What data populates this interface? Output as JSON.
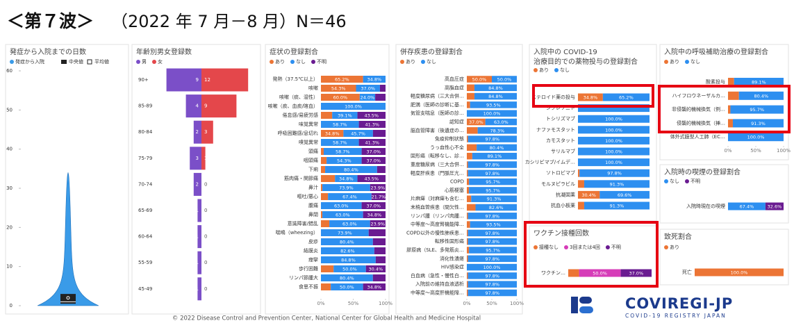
{
  "page_title_prefix": "＜第７波＞",
  "page_title": "（2022 年 7 月－8 月）N＝46",
  "footer": "© 2022 Disease Control and Prevention Center, National Center for Global Health and Medicine Hospital",
  "logo": {
    "name": "COVIREGI-JP",
    "tagline": "COVID-19 REGISTRY JAPAN"
  },
  "chart_data": [
    {
      "type": "violin",
      "title": "発症から入院までの日数",
      "series_name": "発症から入院",
      "median_label": "中央値",
      "mean_label": "平均値",
      "color": "#3a9be8",
      "min": 0,
      "q1": 0.5,
      "median": 1,
      "q3": 3,
      "max": 34,
      "mean": 2,
      "ylim": [
        0,
        60
      ],
      "yticks": [
        0,
        10,
        20,
        30,
        40,
        50,
        60
      ]
    },
    {
      "type": "pyramid",
      "title": "年齢別男女登録数",
      "categories": [
        "90+",
        "85-89",
        "80-84",
        "75-79",
        "70-74",
        "65-69",
        "60-64",
        "55-59",
        "45-49"
      ],
      "series": [
        {
          "name": "男",
          "color": "#7b4fc8",
          "values": [
            9,
            4,
            2,
            3,
            2,
            1,
            1,
            1,
            1
          ]
        },
        {
          "name": "女",
          "color": "#e4474b",
          "values": [
            12,
            9,
            3,
            1,
            0,
            0,
            0,
            0,
            0
          ]
        }
      ]
    },
    {
      "type": "stacked_bar_h",
      "title": "症状の登録割合",
      "categories": [
        "発熱（37.5℃以上）",
        "咳嗽",
        "咳嗽（痰、湿性）",
        "咳嗽（痰、血痰/喀血）",
        "倦怠感/易疲労感",
        "味覚異常",
        "呼吸困難感/息切れ",
        "嗅覚異常",
        "頭痛",
        "咽頭痛",
        "下痢",
        "筋肉痛・関節痛",
        "鼻汁",
        "嘔吐/悪心",
        "腹痛",
        "鼻閉",
        "意識障害/錯乱",
        "喘鳴（wheezing）",
        "皮疹",
        "結膜炎",
        "痙攣",
        "歩行困難",
        "リンパ節腫大",
        "食思不振"
      ],
      "series": [
        {
          "name": "あり",
          "color": "#ec7535",
          "values": [
            65.2,
            54.3,
            60.0,
            0,
            17.4,
            0,
            34.8,
            0,
            4.3,
            8.7,
            6.5,
            21.7,
            2.2,
            10.9,
            0,
            2.2,
            13.0,
            0,
            0,
            0,
            0,
            19.6,
            0,
            15.2
          ],
          "value_labels": [
            "65.2%",
            "54.3%",
            "60.0%",
            null,
            null,
            null,
            "34.8%",
            null,
            null,
            null,
            null,
            null,
            null,
            null,
            null,
            null,
            null,
            null,
            null,
            null,
            null,
            null,
            null,
            null
          ]
        },
        {
          "name": "なし",
          "color": "#2d8ff0",
          "values": [
            34.8,
            37.0,
            24.0,
            100,
            39.1,
            58.7,
            45.7,
            58.7,
            58.7,
            54.3,
            80.4,
            34.8,
            73.9,
            67.4,
            63.0,
            63.0,
            63.0,
            73.9,
            80.4,
            82.6,
            84.8,
            50.0,
            80.4,
            50.0
          ],
          "value_labels": [
            "34.8%",
            "37.0%",
            "24.0%",
            "100.0%",
            "39.1%",
            "58.7%",
            "45.7%",
            "58.7%",
            "58.7%",
            "54.3%",
            "80.4%",
            "34.8%",
            "73.9%",
            "67.4%",
            "63.0%",
            "63.0%",
            "63.0%",
            "73.9%",
            "80.4%",
            "82.6%",
            "84.8%",
            "50.0%",
            "80.4%",
            "50.0%"
          ]
        },
        {
          "name": "不明",
          "color": "#6a1b91",
          "values": [
            0,
            8.7,
            16.0,
            0,
            43.5,
            41.3,
            19.6,
            41.3,
            37.0,
            37.0,
            13.0,
            43.5,
            23.9,
            21.7,
            37.0,
            34.8,
            23.9,
            26.1,
            19.6,
            17.4,
            15.2,
            30.4,
            19.6,
            34.8
          ],
          "value_labels": [
            null,
            null,
            null,
            null,
            "43.5%",
            "41.3%",
            null,
            "41.3%",
            "37.0%",
            "37.0%",
            null,
            "43.5%",
            "23.9%",
            "21.7%",
            "37.0%",
            "34.8%",
            "23.9%",
            null,
            null,
            null,
            null,
            "30.4%",
            null,
            "34.8%"
          ]
        }
      ],
      "xlim": [
        0,
        100
      ],
      "xticks": [
        {
          "value": 0,
          "label": "0%"
        },
        {
          "value": 50,
          "label": "50%"
        },
        {
          "value": 100,
          "label": "100%"
        }
      ]
    },
    {
      "type": "stacked_bar_h",
      "title": "併存疾患の登録割合",
      "categories": [
        "高血圧症",
        "高脂血症",
        "軽度糖尿病（三大合併…",
        "肥満（医師の診断に基…",
        "気管支喘息（医師の診…",
        "認知症",
        "脳血管障害（後遺症の…",
        "免疫抑制状態",
        "うっ血性心不全",
        "固形癌（転移なし、診…",
        "重度糖尿病（三大合併…",
        "軽度肝疾患（門脈圧亢…",
        "COPD",
        "心筋梗塞",
        "片麻痺（対麻痺も含む…",
        "末梢血管疾患（間欠性…",
        "リンパ腫（リンパ肉腫…",
        "中等度～高度腎機能障…",
        "COPD以外の慢性肺疾患…",
        "転移性固形癌",
        "膠原病（SLE、多発筋炎…",
        "消化性潰瘍",
        "HIV感染症",
        "白血病（急性・慢性白…",
        "入院前の維持血液透析",
        "中等度～高度肝機能障…"
      ],
      "series": [
        {
          "name": "あり",
          "color": "#ec7535",
          "values": [
            50.0,
            15.2,
            15.2,
            6.5,
            0,
            37.0,
            21.7,
            2.2,
            19.6,
            10.9,
            2.2,
            2.2,
            4.3,
            4.3,
            8.7,
            17.4,
            2.2,
            6.5,
            2.2,
            2.2,
            4.3,
            2.2,
            0,
            2.2,
            2.2,
            2.2
          ],
          "value_labels": [
            "50.0%",
            null,
            null,
            null,
            null,
            "37.0%",
            null,
            null,
            null,
            null,
            null,
            null,
            null,
            null,
            null,
            null,
            null,
            null,
            null,
            null,
            null,
            null,
            null,
            null,
            null,
            null
          ]
        },
        {
          "name": "なし",
          "color": "#2d8ff0",
          "values": [
            50.0,
            84.8,
            84.8,
            93.5,
            100,
            63.0,
            78.3,
            97.8,
            80.4,
            89.1,
            97.8,
            97.8,
            95.7,
            95.7,
            91.3,
            82.6,
            97.8,
            93.5,
            97.8,
            97.8,
            95.7,
            97.8,
            100,
            97.8,
            97.8,
            97.8
          ],
          "value_labels": [
            "50.0%",
            "84.8%",
            "84.8%",
            "93.5%",
            "100.0%",
            "63.0%",
            "78.3%",
            "97.8%",
            "80.4%",
            "89.1%",
            "97.8%",
            "97.8%",
            "95.7%",
            "95.7%",
            "91.3%",
            "82.6%",
            "97.8%",
            "93.5%",
            "97.8%",
            "97.8%",
            "95.7%",
            "97.8%",
            "100.0%",
            "97.8%",
            "97.8%",
            "97.8%"
          ]
        }
      ],
      "xlim": [
        0,
        100
      ],
      "xticks": [
        {
          "value": 0,
          "label": "0%"
        },
        {
          "value": 50,
          "label": "50%"
        },
        {
          "value": 100,
          "label": "100%"
        }
      ]
    },
    {
      "type": "stacked_bar_h",
      "title": "入院中の COVID-19",
      "subtitle": "治療目的での薬物投与の登録割合",
      "categories": [
        "ステロイド薬の投与",
        "シクレソニド",
        "トシリズマブ",
        "ナファモスタット",
        "カモスタット",
        "サリルマブ",
        "カシリビマブ/イムデ…",
        "ソトロビマブ",
        "モルヌピラビル",
        "抗凝固薬",
        "抗血小板薬"
      ],
      "series": [
        {
          "name": "あり",
          "color": "#ec7535",
          "values": [
            34.8,
            0,
            0,
            0,
            0,
            0,
            0,
            2.2,
            8.7,
            30.4,
            8.7
          ],
          "value_labels": [
            "34.8%",
            null,
            null,
            null,
            null,
            null,
            null,
            null,
            null,
            "30.4%",
            null
          ]
        },
        {
          "name": "なし",
          "color": "#2d8ff0",
          "values": [
            65.2,
            100,
            100,
            100,
            100,
            100,
            100,
            97.8,
            91.3,
            69.6,
            91.3
          ],
          "value_labels": [
            "65.2%",
            null,
            "100.0%",
            "100.0%",
            "100.0%",
            "100.0%",
            "100.0%",
            "97.8%",
            "91.3%",
            "69.6%",
            "91.3%"
          ]
        }
      ],
      "xlim": [
        0,
        100
      ]
    },
    {
      "type": "stacked_bar_h",
      "title": "入院中の呼吸補助治療の登録割合",
      "categories": [
        "酸素投与",
        "ハイフロウネーザルカ…",
        "非侵襲的機械換気（例…",
        "侵襲的機械換気（挿…",
        "体外式膜型人工肺（EC…"
      ],
      "series": [
        {
          "name": "あり",
          "color": "#ec7535",
          "values": [
            10.9,
            19.6,
            4.3,
            8.7,
            0
          ],
          "value_labels": [
            null,
            null,
            null,
            null,
            null
          ]
        },
        {
          "name": "なし",
          "color": "#2d8ff0",
          "values": [
            89.1,
            80.4,
            95.7,
            91.3,
            100
          ],
          "value_labels": [
            "89.1%",
            "80.4%",
            "95.7%",
            "91.3%",
            "100.0%"
          ]
        }
      ],
      "xlim": [
        0,
        100
      ],
      "xticks": [
        {
          "value": 0,
          "label": "0%"
        },
        {
          "value": 50,
          "label": "50%"
        },
        {
          "value": 100,
          "label": "100%"
        }
      ]
    },
    {
      "type": "stacked_bar_h",
      "title": "入院時の喫煙の登録割合",
      "categories": [
        "入院時現在の喫煙"
      ],
      "series": [
        {
          "name": "なし",
          "color": "#2d8ff0",
          "values": [
            67.4
          ],
          "value_labels": [
            "67.4%"
          ]
        },
        {
          "name": "不明",
          "color": "#6a1b91",
          "values": [
            32.6
          ],
          "value_labels": [
            "32.6%"
          ]
        }
      ],
      "xlim": [
        0,
        100
      ]
    },
    {
      "type": "stacked_bar_h",
      "title": "ワクチン接種回数",
      "categories": [
        "ワクチン…"
      ],
      "series": [
        {
          "name": "接種なし",
          "color": "#ec7535",
          "values": [
            13.0
          ],
          "value_labels": [
            null
          ]
        },
        {
          "name": "3回または4回",
          "color": "#d63cb8",
          "values": [
            50.0
          ],
          "value_labels": [
            "50.0%"
          ]
        },
        {
          "name": "不明",
          "color": "#6a1b91",
          "values": [
            37.0
          ],
          "value_labels": [
            "37.0%"
          ]
        }
      ],
      "xlim": [
        0,
        100
      ]
    },
    {
      "type": "stacked_bar_h",
      "title": "致死割合",
      "categories": [
        "死亡"
      ],
      "series": [
        {
          "name": "あり",
          "color": "#ec7535",
          "values": [
            100
          ],
          "value_labels": [
            "100.0%"
          ]
        }
      ],
      "xlim": [
        0,
        100
      ]
    }
  ]
}
